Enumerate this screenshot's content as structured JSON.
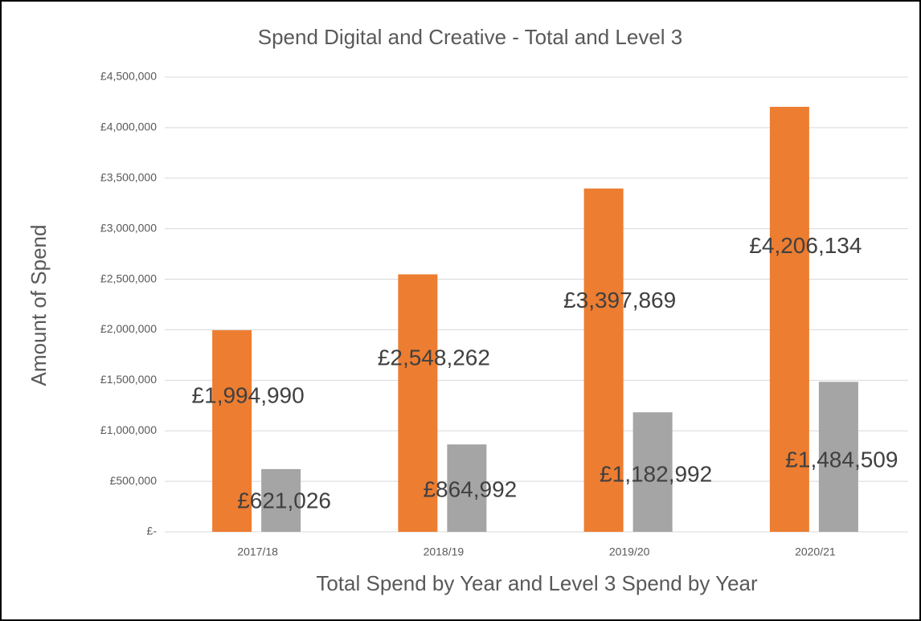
{
  "chart_data": {
    "type": "bar",
    "title": "Spend Digital and Creative - Total and Level 3",
    "x_label": "Total Spend by Year and Level 3 Spend by Year",
    "y_label": "Amount of Spend",
    "categories": [
      "2017/18",
      "2018/19",
      "2019/20",
      "2020/21"
    ],
    "series": [
      {
        "color": "#ed7d31",
        "values": [
          1994990,
          2548262,
          3397869,
          4206134
        ],
        "value_labels": [
          "£1,994,990",
          "£2,548,262",
          "£3,397,869",
          "£4,206,134"
        ]
      },
      {
        "color": "#a5a5a5",
        "values": [
          621026,
          864992,
          1182992,
          1484509
        ],
        "value_labels": [
          "£621,026",
          "£864,992",
          "£1,182,992",
          "£1,484,509"
        ]
      }
    ],
    "ylim": [
      0,
      4500000
    ],
    "yticks": [
      {
        "value": 0,
        "label": "£-"
      },
      {
        "value": 500000,
        "label": "£500,000"
      },
      {
        "value": 1000000,
        "label": "£1,000,000"
      },
      {
        "value": 1500000,
        "label": "£1,500,000"
      },
      {
        "value": 2000000,
        "label": "£2,000,000"
      },
      {
        "value": 2500000,
        "label": "£2,500,000"
      },
      {
        "value": 3000000,
        "label": "£3,000,000"
      },
      {
        "value": 3500000,
        "label": "£3,500,000"
      },
      {
        "value": 4000000,
        "label": "£4,000,000"
      },
      {
        "value": 4500000,
        "label": "£4,500,000"
      }
    ],
    "grid": true
  }
}
